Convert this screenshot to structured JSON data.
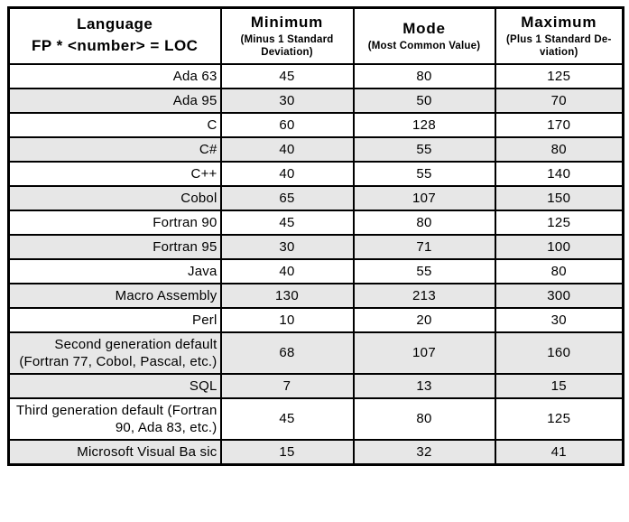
{
  "colors": {
    "row_shade": "#e7e7e7",
    "border": "#000000",
    "background": "#ffffff"
  },
  "table": {
    "header": {
      "language": {
        "line1": "Language",
        "line2": "FP * <number> = LOC"
      },
      "minimum": {
        "title": "Minimum",
        "subtitle": "(Minus 1 Standard Deviation)"
      },
      "mode": {
        "title": "Mode",
        "subtitle": "(Most Common Value)"
      },
      "maximum": {
        "title": "Maximum",
        "subtitle": "(Plus 1 Standard De-viation)"
      }
    },
    "rows": [
      {
        "language": "Ada 63",
        "minimum": "45",
        "mode": "80",
        "maximum": "125",
        "shaded": false
      },
      {
        "language": "Ada 95",
        "minimum": "30",
        "mode": "50",
        "maximum": "70",
        "shaded": true
      },
      {
        "language": "C",
        "minimum": "60",
        "mode": "128",
        "maximum": "170",
        "shaded": false
      },
      {
        "language": "C#",
        "minimum": "40",
        "mode": "55",
        "maximum": "80",
        "shaded": true
      },
      {
        "language": "C++",
        "minimum": "40",
        "mode": "55",
        "maximum": "140",
        "shaded": false
      },
      {
        "language": "Cobol",
        "minimum": "65",
        "mode": "107",
        "maximum": "150",
        "shaded": true
      },
      {
        "language": "Fortran 90",
        "minimum": "45",
        "mode": "80",
        "maximum": "125",
        "shaded": false
      },
      {
        "language": "Fortran 95",
        "minimum": "30",
        "mode": "71",
        "maximum": "100",
        "shaded": true
      },
      {
        "language": "Java",
        "minimum": "40",
        "mode": "55",
        "maximum": "80",
        "shaded": false
      },
      {
        "language": "Macro Assembly",
        "minimum": "130",
        "mode": "213",
        "maximum": "300",
        "shaded": true
      },
      {
        "language": "Perl",
        "minimum": "10",
        "mode": "20",
        "maximum": "30",
        "shaded": false
      },
      {
        "language": "Second generation default (Fortran 77, Cobol, Pascal, etc.)",
        "minimum": "68",
        "mode": "107",
        "maximum": "160",
        "shaded": true
      },
      {
        "language": "SQL",
        "minimum": "7",
        "mode": "13",
        "maximum": "15",
        "shaded": true
      },
      {
        "language": "Third generation default (Fortran 90, Ada 83, etc.)",
        "minimum": "45",
        "mode": "80",
        "maximum": "125",
        "shaded": false
      },
      {
        "language": "Microsoft Visual Ba sic",
        "minimum": "15",
        "mode": "32",
        "maximum": "41",
        "shaded": true
      }
    ]
  }
}
